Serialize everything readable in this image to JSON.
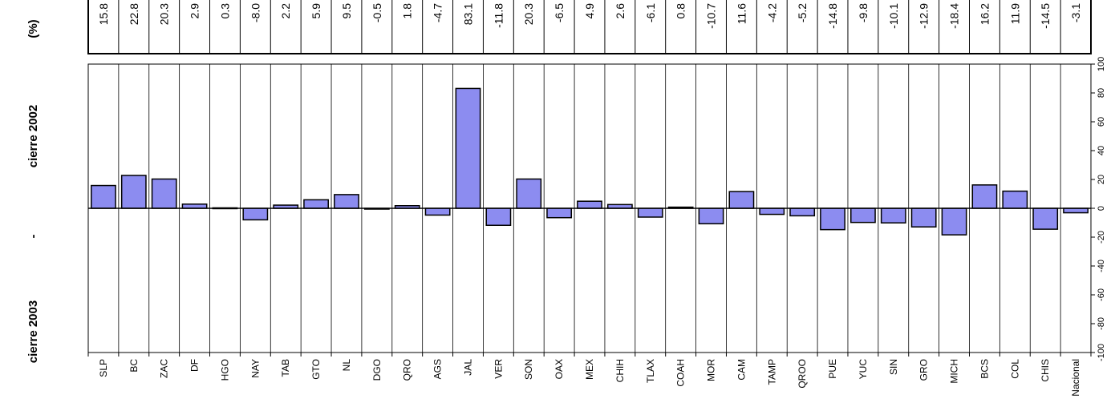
{
  "side_labels": {
    "percent": "(%)",
    "top": "cierre 2002",
    "dash": "-",
    "bottom": "cierre 2003"
  },
  "chart_data": {
    "type": "bar",
    "categories": [
      "SLP",
      "BC",
      "ZAC",
      "DF",
      "HGO",
      "NAY",
      "TAB",
      "GTO",
      "NL",
      "DGO",
      "QRO",
      "AGS",
      "JAL",
      "VER",
      "SON",
      "OAX",
      "MEX",
      "CHIH",
      "TLAX",
      "COAH",
      "MOR",
      "CAM",
      "TAMP",
      "QROO",
      "PUE",
      "YUC",
      "SIN",
      "GRO",
      "MICH",
      "BCS",
      "COL",
      "CHIS",
      "Nacional"
    ],
    "values": [
      15.8,
      22.8,
      20.3,
      2.9,
      0.3,
      -8.0,
      2.2,
      5.9,
      9.5,
      -0.5,
      1.8,
      -4.7,
      83.1,
      -11.8,
      20.3,
      -6.5,
      4.9,
      2.6,
      -6.1,
      0.8,
      -10.7,
      11.6,
      -4.2,
      -5.2,
      -14.8,
      -9.8,
      -10.1,
      -12.9,
      -18.4,
      16.2,
      11.9,
      -14.5,
      -3.1
    ],
    "value_labels": [
      "15.8",
      "22.8",
      "20.3",
      "2.9",
      "0.3",
      "-8.0",
      "2.2",
      "5.9",
      "9.5",
      "-0.5",
      "1.8",
      "-4.7",
      "83.1",
      "-11.8",
      "20.3",
      "-6.5",
      "4.9",
      "2.6",
      "-6.1",
      "0.8",
      "-10.7",
      "11.6",
      "-4.2",
      "-5.2",
      "-14.8",
      "-9.8",
      "-10.1",
      "-12.9",
      "-18.4",
      "16.2",
      "11.9",
      "-14.5",
      "-3.1"
    ],
    "ylim": [
      -100,
      100
    ],
    "yticks": [
      "100",
      "80",
      "60",
      "40",
      "20",
      "0",
      "-20",
      "-40",
      "-60",
      "-80",
      "-100"
    ],
    "grid": "vertical category separators",
    "bar_color": "#8C8CF0",
    "bar_stroke": "#000000",
    "value_table": "top"
  }
}
